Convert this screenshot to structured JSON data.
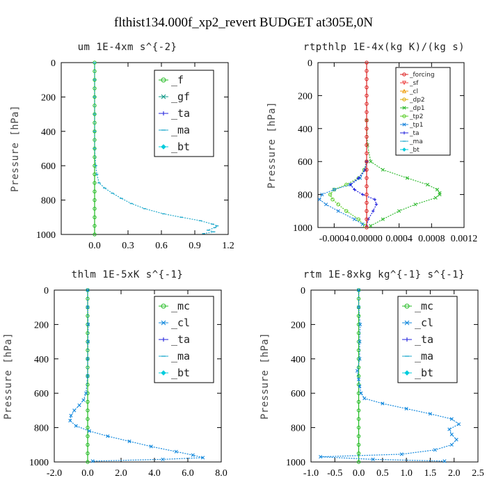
{
  "figure": {
    "title": "flthist134.000f_xp2_revert  BUDGET at305E,0N"
  },
  "colors": {
    "f": "#22bb22",
    "gf": "#119988",
    "ta": "#2222dd",
    "ma": "#22aacc",
    "bt": "#00ccdd",
    "cl": "#1188dd",
    "mc": "#22bb22",
    "forcing": "#dd2222",
    "sf": "#ee4444",
    "cl_small": "#ee9900",
    "dp2": "#ddaa00",
    "dp1": "#33bb33",
    "tp2": "#55cc22",
    "tp1": "#2288dd",
    "small_ta": "#2222dd",
    "small_ma": "#22aacc",
    "small_bt": "#00ccdd"
  },
  "chart_data": [
    {
      "type": "line",
      "id": "um",
      "title": "um   1E-4xm s^{-2}",
      "ylabel": "Pressure [hPa]",
      "xlim": [
        -0.3,
        1.2
      ],
      "ylim": [
        1000,
        0
      ],
      "xticks": [
        0.0,
        0.3,
        0.6,
        0.9,
        1.2
      ],
      "xticklabels": [
        "0.0",
        "0.3",
        "0.6",
        "0.9",
        "1.2"
      ],
      "yticks": [
        0,
        200,
        400,
        600,
        800,
        1000
      ],
      "yticklabels": [
        "0",
        "200",
        "400",
        "600",
        "800",
        "1000"
      ],
      "legend": [
        {
          "label": "_f",
          "key": "f",
          "marker": "circle"
        },
        {
          "label": "_gf",
          "key": "gf",
          "marker": "x"
        },
        {
          "label": "_ta",
          "key": "ta",
          "marker": "plus"
        },
        {
          "label": "_ma",
          "key": "ma",
          "marker": "dash"
        },
        {
          "label": "_bt",
          "key": "bt",
          "marker": "diamond"
        }
      ],
      "series": [
        {
          "key": "f",
          "p": [
            0,
            50,
            100,
            150,
            200,
            250,
            300,
            350,
            400,
            450,
            500,
            550,
            600,
            650,
            700,
            750,
            800,
            850,
            900,
            950,
            1000
          ],
          "v": [
            0,
            0,
            0,
            0,
            0,
            0,
            0,
            0,
            0,
            0,
            0,
            0,
            0,
            0,
            0,
            0,
            0,
            0,
            0,
            0,
            0
          ]
        },
        {
          "key": "ma",
          "p": [
            0,
            100,
            200,
            300,
            400,
            500,
            600,
            650,
            700,
            730,
            760,
            790,
            820,
            850,
            880,
            900,
            920,
            940,
            950,
            960,
            975,
            985,
            995
          ],
          "v": [
            0,
            0,
            0,
            0,
            0,
            0,
            0.01,
            0.02,
            0.04,
            0.09,
            0.16,
            0.24,
            0.33,
            0.45,
            0.62,
            0.78,
            0.95,
            1.06,
            1.1,
            1.08,
            1.02,
            1.07,
            0.98
          ]
        }
      ]
    },
    {
      "type": "line",
      "id": "rtpthlp",
      "title": "rtpthlp   1E-4x(kg K)/(kg s)",
      "ylabel": "Pressure [hPa]",
      "xlim": [
        -0.0006,
        0.0012
      ],
      "ylim": [
        1000,
        0
      ],
      "xticks": [
        -0.0004,
        0.0,
        0.0004,
        0.0008,
        0.0012
      ],
      "xticklabels": [
        "-0.0004",
        "0.00000",
        "0.0004",
        "0.0008",
        "0.0012"
      ],
      "yticks": [
        0,
        200,
        400,
        600,
        800,
        1000
      ],
      "yticklabels": [
        "0",
        "200",
        "400",
        "600",
        "800",
        "1000"
      ],
      "legend": [
        {
          "label": "_forcing",
          "key": "forcing",
          "marker": "circle"
        },
        {
          "label": "_sf",
          "key": "sf",
          "marker": "tri-down"
        },
        {
          "label": "_cl",
          "key": "cl_small",
          "marker": "tri"
        },
        {
          "label": "_dp2",
          "key": "dp2",
          "marker": "circle"
        },
        {
          "label": "_dp1",
          "key": "dp1",
          "marker": "x"
        },
        {
          "label": "_tp2",
          "key": "tp2",
          "marker": "circle"
        },
        {
          "label": "_tp1",
          "key": "tp1",
          "marker": "x"
        },
        {
          "label": "_ta",
          "key": "small_ta",
          "marker": "plus"
        },
        {
          "label": "_ma",
          "key": "small_ma",
          "marker": "dash"
        },
        {
          "label": "_bt",
          "key": "small_bt",
          "marker": "diamond"
        }
      ],
      "series": [
        {
          "key": "dp1",
          "p": [
            350,
            500,
            600,
            650,
            700,
            740,
            770,
            790,
            800,
            820,
            860,
            900,
            950,
            990
          ],
          "v": [
            0,
            1e-05,
            5e-05,
            0.0002,
            0.0005,
            0.00075,
            0.00087,
            0.0009,
            0.0009,
            0.00085,
            0.0006,
            0.0004,
            0.0002,
            5e-05
          ]
        },
        {
          "key": "tp2",
          "p": [
            600,
            650,
            700,
            740,
            770,
            800,
            830,
            860,
            900,
            950,
            990
          ],
          "v": [
            0,
            -3e-05,
            -0.0001,
            -0.00025,
            -0.0004,
            -0.00045,
            -0.00042,
            -0.00035,
            -0.00025,
            -0.0001,
            -2e-05
          ]
        },
        {
          "key": "tp1",
          "p": [
            600,
            650,
            700,
            740,
            770,
            800,
            830,
            860,
            900,
            950,
            980
          ],
          "v": [
            0,
            -2e-05,
            -8e-05,
            -0.0002,
            -0.0004,
            -0.00055,
            -0.00058,
            -0.0005,
            -0.00035,
            -0.00015,
            -5e-05
          ]
        },
        {
          "key": "small_ta",
          "p": [
            600,
            650,
            700,
            740,
            770,
            800,
            830,
            860,
            900,
            950,
            990
          ],
          "v": [
            0,
            -2e-05,
            -0.0001,
            -0.0002,
            -0.00015,
            -5e-05,
            0.0001,
            0.00012,
            8e-05,
            2e-05,
            0
          ]
        },
        {
          "key": "forcing",
          "p": [
            0,
            50,
            100,
            150,
            200,
            250,
            300,
            350,
            400,
            450,
            500,
            550,
            600,
            650,
            700,
            750,
            800,
            850,
            900,
            950,
            1000
          ],
          "v": [
            0,
            0,
            0,
            0,
            0,
            0,
            0,
            0,
            0,
            0,
            0,
            0,
            0,
            0,
            0,
            0,
            0,
            0,
            0,
            0,
            0
          ]
        }
      ]
    },
    {
      "type": "line",
      "id": "thlm",
      "title": "thlm   1E-5xK s^{-1}",
      "ylabel": "Pressure [hPa]",
      "xlim": [
        -2.0,
        8.0
      ],
      "ylim": [
        1000,
        0
      ],
      "xticks": [
        -2.0,
        0.0,
        2.0,
        4.0,
        6.0,
        8.0
      ],
      "xticklabels": [
        "-2.0",
        "0.0",
        "2.0",
        "4.0",
        "6.0",
        "8.0"
      ],
      "yticks": [
        0,
        200,
        400,
        600,
        800,
        1000
      ],
      "yticklabels": [
        "0",
        "200",
        "400",
        "600",
        "800",
        "1000"
      ],
      "legend": [
        {
          "label": "_mc",
          "key": "mc",
          "marker": "circle"
        },
        {
          "label": "_cl",
          "key": "cl",
          "marker": "x"
        },
        {
          "label": "_ta",
          "key": "ta",
          "marker": "plus"
        },
        {
          "label": "_ma",
          "key": "ma",
          "marker": "dash"
        },
        {
          "label": "_bt",
          "key": "bt",
          "marker": "diamond"
        }
      ],
      "series": [
        {
          "key": "mc",
          "p": [
            0,
            50,
            100,
            150,
            200,
            250,
            300,
            350,
            400,
            450,
            500,
            550,
            600,
            650,
            700,
            750,
            800,
            850,
            900,
            950,
            1000
          ],
          "v": [
            0,
            0,
            0,
            0,
            0,
            0,
            0,
            0,
            0,
            0,
            0,
            0,
            0,
            0,
            0,
            0,
            0,
            0,
            0,
            0,
            0
          ]
        },
        {
          "key": "cl",
          "p": [
            0,
            100,
            200,
            300,
            400,
            500,
            600,
            640,
            670,
            700,
            730,
            760,
            790,
            820,
            850,
            880,
            910,
            940,
            960,
            975,
            985,
            995
          ],
          "v": [
            0,
            0,
            0.03,
            0.02,
            0,
            0,
            -0.1,
            -0.25,
            -0.5,
            -0.8,
            -1.0,
            -1.05,
            -0.7,
            0.1,
            1.2,
            2.5,
            3.8,
            5.3,
            6.3,
            6.9,
            4.5,
            0.3
          ]
        }
      ]
    },
    {
      "type": "line",
      "id": "rtm",
      "title": "rtm   1E-8xkg kg^{-1} s^{-1}",
      "ylabel": "Pressure [hPa]",
      "xlim": [
        -1.0,
        2.5
      ],
      "ylim": [
        1000,
        0
      ],
      "xticks": [
        -1.0,
        -0.5,
        0.0,
        0.5,
        1.0,
        1.5,
        2.0,
        2.5
      ],
      "xticklabels": [
        "-1.0",
        "-0.5",
        "0.0",
        "0.5",
        "1.0",
        "1.5",
        "2.0",
        "2.5"
      ],
      "yticks": [
        0,
        200,
        400,
        600,
        800,
        1000
      ],
      "yticklabels": [
        "0",
        "200",
        "400",
        "600",
        "800",
        "1000"
      ],
      "legend": [
        {
          "label": "_mc",
          "key": "mc",
          "marker": "circle"
        },
        {
          "label": "_cl",
          "key": "cl",
          "marker": "x"
        },
        {
          "label": "_ta",
          "key": "ta",
          "marker": "plus"
        },
        {
          "label": "_ma",
          "key": "ma",
          "marker": "dash"
        },
        {
          "label": "_bt",
          "key": "bt",
          "marker": "diamond"
        }
      ],
      "series": [
        {
          "key": "mc",
          "p": [
            0,
            50,
            100,
            150,
            200,
            250,
            300,
            350,
            400,
            450,
            500,
            550,
            600,
            650,
            700,
            750,
            800,
            850,
            900,
            950,
            1000
          ],
          "v": [
            0,
            0,
            0,
            0,
            0,
            0,
            0,
            0,
            0,
            0,
            0,
            0,
            0,
            0,
            0,
            0,
            0,
            0,
            0,
            0,
            0
          ]
        },
        {
          "key": "cl",
          "p": [
            0,
            100,
            200,
            300,
            400,
            470,
            520,
            560,
            600,
            630,
            660,
            690,
            720,
            750,
            780,
            810,
            840,
            870,
            900,
            930,
            955,
            970,
            985,
            995
          ],
          "v": [
            0,
            0,
            0.03,
            0.02,
            0.02,
            -0.03,
            0,
            0.02,
            0.05,
            0.12,
            0.5,
            1.0,
            1.5,
            1.95,
            2.1,
            1.9,
            1.95,
            2.05,
            1.95,
            1.6,
            0.9,
            -0.8,
            0.3,
            1.8
          ]
        }
      ]
    }
  ]
}
